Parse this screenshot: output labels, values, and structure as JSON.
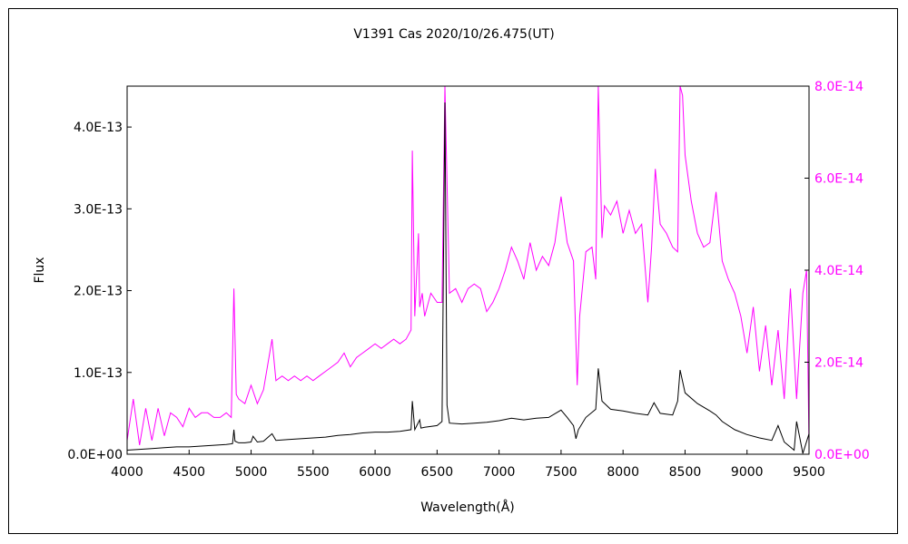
{
  "chart_data": {
    "type": "line",
    "title": "V1391 Cas    2020/10/26.475(UT)",
    "xlabel": "Wavelength(Å)",
    "ylabel": "Flux",
    "y2label": "",
    "xlim": [
      4000,
      9500
    ],
    "ylim": [
      0,
      4.5e-13
    ],
    "y2lim": [
      0,
      8e-14
    ],
    "x_ticks": [
      "4000",
      "4500",
      "5000",
      "5500",
      "6000",
      "6500",
      "7000",
      "7500",
      "8000",
      "8500",
      "9000",
      "9500"
    ],
    "y_ticks": [
      "0.0E+00",
      "1.0E-13",
      "2.0E-13",
      "3.0E-13",
      "4.0E-13"
    ],
    "y2_ticks": [
      "0.0E+00",
      "2.0E-14",
      "4.0E-14",
      "6.0E-14",
      "8.0E-14"
    ],
    "grid": false,
    "series": [
      {
        "axis": "left",
        "color": "#000000",
        "x": [
          4000,
          4100,
          4200,
          4300,
          4400,
          4500,
          4600,
          4700,
          4800,
          4850,
          4861,
          4870,
          4900,
          4950,
          5000,
          5016,
          5050,
          5100,
          5169,
          5200,
          5300,
          5400,
          5500,
          5600,
          5700,
          5800,
          5900,
          6000,
          6100,
          6200,
          6290,
          6300,
          6320,
          6360,
          6370,
          6400,
          6500,
          6540,
          6563,
          6580,
          6600,
          6700,
          6800,
          6900,
          7000,
          7100,
          7200,
          7300,
          7400,
          7500,
          7550,
          7600,
          7620,
          7640,
          7700,
          7780,
          7800,
          7830,
          7900,
          8000,
          8100,
          8200,
          8250,
          8300,
          8400,
          8440,
          8460,
          8500,
          8600,
          8700,
          8750,
          8800,
          8900,
          9000,
          9100,
          9200,
          9250,
          9300,
          9380,
          9400,
          9450,
          9500
        ],
        "values": [
          5e-15,
          6e-15,
          7e-15,
          8e-15,
          9e-15,
          9e-15,
          1e-14,
          1.1e-14,
          1.2e-14,
          1.3e-14,
          3e-14,
          1.6e-14,
          1.4e-14,
          1.4e-14,
          1.5e-14,
          2.2e-14,
          1.5e-14,
          1.6e-14,
          2.5e-14,
          1.7e-14,
          1.8e-14,
          1.9e-14,
          2e-14,
          2.1e-14,
          2.3e-14,
          2.4e-14,
          2.6e-14,
          2.7e-14,
          2.7e-14,
          2.8e-14,
          3e-14,
          6.5e-14,
          3e-14,
          4.2e-14,
          3.2e-14,
          3.3e-14,
          3.5e-14,
          4e-14,
          4.3e-13,
          6e-14,
          3.8e-14,
          3.7e-14,
          3.8e-14,
          3.9e-14,
          4.1e-14,
          4.4e-14,
          4.2e-14,
          4.4e-14,
          4.5e-14,
          5.4e-14,
          4.5e-14,
          3.5e-14,
          1.9e-14,
          3e-14,
          4.5e-14,
          5.5e-14,
          1.05e-13,
          6.5e-14,
          5.5e-14,
          5.3e-14,
          5e-14,
          4.8e-14,
          6.3e-14,
          5e-14,
          4.8e-14,
          6.5e-14,
          1.03e-13,
          7.5e-14,
          6.2e-14,
          5.3e-14,
          4.8e-14,
          4e-14,
          3e-14,
          2.4e-14,
          2e-14,
          1.7e-14,
          3.5e-14,
          1.5e-14,
          5e-15,
          4e-14,
          1e-15,
          2.5e-14
        ]
      },
      {
        "axis": "right",
        "color": "#ff00ff",
        "x": [
          4000,
          4050,
          4100,
          4150,
          4200,
          4250,
          4300,
          4350,
          4400,
          4450,
          4500,
          4550,
          4600,
          4650,
          4700,
          4750,
          4800,
          4840,
          4861,
          4880,
          4900,
          4950,
          5000,
          5050,
          5100,
          5169,
          5200,
          5250,
          5300,
          5350,
          5400,
          5450,
          5500,
          5550,
          5600,
          5650,
          5700,
          5750,
          5800,
          5850,
          5900,
          5950,
          6000,
          6050,
          6100,
          6150,
          6200,
          6250,
          6290,
          6300,
          6320,
          6350,
          6360,
          6380,
          6400,
          6450,
          6500,
          6540,
          6563,
          6600,
          6650,
          6700,
          6750,
          6800,
          6850,
          6900,
          6950,
          7000,
          7050,
          7100,
          7150,
          7200,
          7250,
          7300,
          7350,
          7400,
          7450,
          7480,
          7500,
          7550,
          7600,
          7630,
          7650,
          7700,
          7750,
          7780,
          7800,
          7830,
          7850,
          7900,
          7950,
          8000,
          8050,
          8100,
          8150,
          8200,
          8230,
          8260,
          8300,
          8350,
          8400,
          8440,
          8460,
          8480,
          8500,
          8550,
          8600,
          8650,
          8700,
          8750,
          8800,
          8850,
          8900,
          8950,
          9000,
          9050,
          9100,
          9150,
          9200,
          9250,
          9300,
          9350,
          9400,
          9450,
          9480,
          9500
        ],
        "values": [
          3e-15,
          1.2e-14,
          2e-15,
          1e-14,
          3e-15,
          1e-14,
          4e-15,
          9e-15,
          8e-15,
          6e-15,
          1e-14,
          8e-15,
          9e-15,
          9e-15,
          8e-15,
          8e-15,
          9e-15,
          8e-15,
          3.6e-14,
          1.3e-14,
          1.2e-14,
          1.1e-14,
          1.5e-14,
          1.1e-14,
          1.4e-14,
          2.5e-14,
          1.6e-14,
          1.7e-14,
          1.6e-14,
          1.7e-14,
          1.6e-14,
          1.7e-14,
          1.6e-14,
          1.7e-14,
          1.8e-14,
          1.9e-14,
          2e-14,
          2.2e-14,
          1.9e-14,
          2.1e-14,
          2.2e-14,
          2.3e-14,
          2.4e-14,
          2.3e-14,
          2.4e-14,
          2.5e-14,
          2.4e-14,
          2.5e-14,
          2.7e-14,
          6.6e-14,
          3e-14,
          4.8e-14,
          3.2e-14,
          3.5e-14,
          3e-14,
          3.5e-14,
          3.3e-14,
          3.3e-14,
          8e-14,
          3.5e-14,
          3.6e-14,
          3.3e-14,
          3.6e-14,
          3.7e-14,
          3.6e-14,
          3.1e-14,
          3.3e-14,
          3.6e-14,
          4e-14,
          4.5e-14,
          4.2e-14,
          3.8e-14,
          4.6e-14,
          4e-14,
          4.3e-14,
          4.1e-14,
          4.6e-14,
          5.2e-14,
          5.6e-14,
          4.6e-14,
          4.2e-14,
          1.5e-14,
          3e-14,
          4.4e-14,
          4.5e-14,
          3.8e-14,
          8e-14,
          4.7e-14,
          5.4e-14,
          5.2e-14,
          5.5e-14,
          4.8e-14,
          5.3e-14,
          4.8e-14,
          5e-14,
          3.3e-14,
          4.5e-14,
          6.2e-14,
          5e-14,
          4.8e-14,
          4.5e-14,
          4.4e-14,
          8e-14,
          7.8e-14,
          6.5e-14,
          5.5e-14,
          4.8e-14,
          4.5e-14,
          4.6e-14,
          5.7e-14,
          4.2e-14,
          3.8e-14,
          3.5e-14,
          3e-14,
          2.2e-14,
          3.2e-14,
          1.8e-14,
          2.8e-14,
          1.5e-14,
          2.7e-14,
          1.2e-14,
          3.6e-14,
          1.2e-14,
          3.5e-14,
          4e-14,
          2e-15
        ]
      }
    ]
  }
}
